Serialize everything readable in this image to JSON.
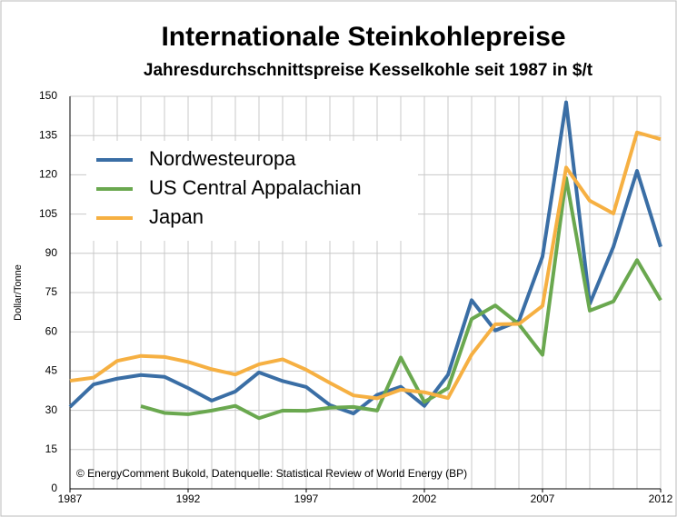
{
  "chart_data": {
    "type": "line",
    "title": "Internationale Steinkohlepreise",
    "subtitle": "Jahresdurchschnittspreise Kesselkohle seit 1987 in $/t",
    "y_label": "Dollar/Tonne",
    "annotation": "© EnergyComment Bukold, Datenquelle: Statistical Review of World Energy (BP)",
    "x": [
      1987,
      1988,
      1989,
      1990,
      1991,
      1992,
      1993,
      1994,
      1995,
      1996,
      1997,
      1998,
      1999,
      2000,
      2001,
      2002,
      2003,
      2004,
      2005,
      2006,
      2007,
      2008,
      2009,
      2010,
      2011,
      2012
    ],
    "series": [
      {
        "name": "Nordwesteuropa",
        "color": "#3a6ea5",
        "values": [
          31.3,
          39.9,
          42.1,
          43.5,
          42.8,
          38.5,
          33.7,
          37.2,
          44.5,
          41.2,
          38.9,
          32.0,
          28.8,
          35.9,
          39.0,
          31.7,
          43.6,
          72.1,
          60.5,
          64.1,
          88.8,
          147.7,
          70.7,
          92.5,
          121.5,
          92.5
        ]
      },
      {
        "name": "US Central Appalachian",
        "color": "#6aa84f",
        "values": [
          null,
          null,
          null,
          31.6,
          29.0,
          28.5,
          29.9,
          31.7,
          27.0,
          29.9,
          29.8,
          31.0,
          31.3,
          29.9,
          50.2,
          33.2,
          38.5,
          64.9,
          70.1,
          62.9,
          51.2,
          118.8,
          68.1,
          71.6,
          87.4,
          72.1
        ]
      },
      {
        "name": "Japan",
        "color": "#f6b042",
        "values": [
          41.3,
          42.5,
          48.9,
          50.8,
          50.4,
          48.5,
          45.7,
          43.7,
          47.6,
          49.5,
          45.5,
          40.5,
          35.7,
          34.6,
          37.9,
          36.9,
          34.7,
          51.3,
          62.9,
          63.0,
          69.9,
          122.8,
          110.1,
          105.2,
          136.2,
          133.6
        ]
      }
    ],
    "xlim": [
      1987,
      2012
    ],
    "xticks": [
      1987,
      1992,
      1997,
      2002,
      2007,
      2012
    ],
    "ylim": [
      0,
      150
    ],
    "yticks": [
      0,
      15,
      30,
      45,
      60,
      75,
      90,
      105,
      120,
      135,
      150
    ],
    "grid": true,
    "legend": "upper left"
  }
}
